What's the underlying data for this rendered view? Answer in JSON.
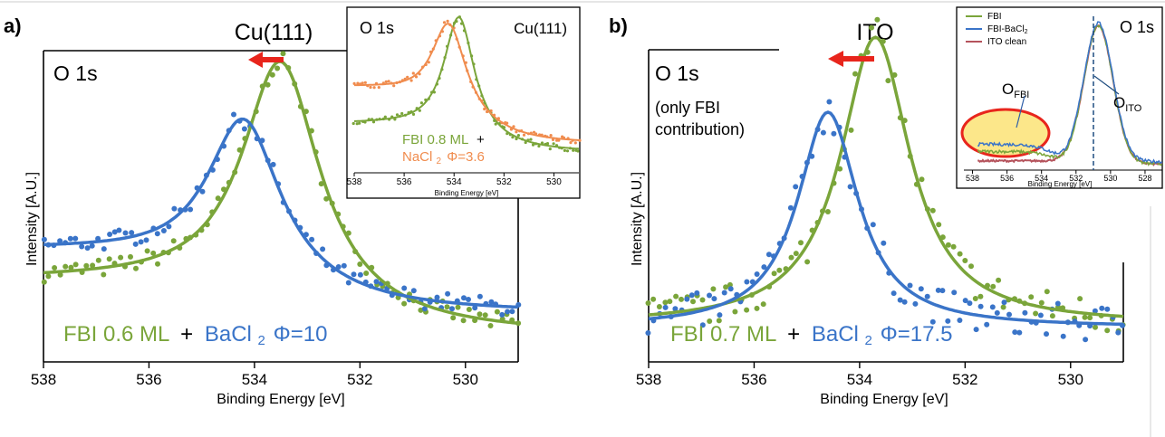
{
  "colors": {
    "green": "#7aa53a",
    "blue": "#3a74c8",
    "orange": "#f08c4e",
    "red": "#e8251c",
    "maroon": "#b5535c",
    "highlight": "#fce78a"
  },
  "panel_a": {
    "label": "a)",
    "substrate": "Cu(111)",
    "peak": "O 1s",
    "legend": {
      "fbi": "FBI 0.6 ML",
      "plus": "+",
      "bacl": "BaCl",
      "bacl_sub": "2",
      "phi": "Φ=10"
    },
    "xlabel": "Binding Energy [eV]",
    "ylabel": "Intensity [A.U.]",
    "ticks": [
      "538",
      "536",
      "534",
      "532",
      "530"
    ],
    "inset": {
      "peak": "O 1s",
      "substrate": "Cu(111)",
      "legend_fbi": "FBI 0.8 ML",
      "legend_plus": "+",
      "legend_nacl": "NaCl",
      "legend_nacl_sub": "2",
      "legend_phi": "Φ=3.6",
      "ticks": [
        "538",
        "536",
        "534",
        "532",
        "530"
      ],
      "xlabel": "Binding Energy [eV]"
    }
  },
  "panel_b": {
    "label": "b)",
    "substrate": "ITO",
    "peak": "O 1s",
    "note_1": "(only FBI",
    "note_2": "contribution)",
    "legend": {
      "fbi": "FBI 0.7 ML",
      "plus": "+",
      "bacl": "BaCl",
      "bacl_sub": "2",
      "phi": "Φ=17.5"
    },
    "xlabel": "Binding Energy [eV]",
    "ylabel": "Intensity [A.U.]",
    "ticks": [
      "538",
      "536",
      "534",
      "532",
      "530"
    ],
    "inset": {
      "peak": "O 1s",
      "legend": [
        "FBI",
        "FBI-BaCl",
        "ITO clean"
      ],
      "legend_sub": "2",
      "ann_fbi": "O",
      "ann_fbi_sub": "FBI",
      "ann_ito": "O",
      "ann_ito_sub": "ITO",
      "ticks": [
        "538",
        "536",
        "534",
        "532",
        "530",
        "528"
      ],
      "xlabel": "Binding Energy [eV]"
    }
  },
  "chart_data": [
    {
      "type": "scatter",
      "title": "Cu(111)",
      "xlabel": "Binding Energy [eV]",
      "ylabel": "Intensity [A.U.]",
      "xlim": [
        538,
        529
      ],
      "x_reversed": true,
      "series": [
        {
          "name": "FBI 0.6 ML",
          "fit_center": 533.5,
          "fit_width": 0.9,
          "fit_height": 0.79,
          "baseline_low": 0.26,
          "baseline_high": 0.09
        },
        {
          "name": "BaCl2 Φ=10",
          "fit_center": 534.2,
          "fit_width": 0.85,
          "fit_height": 0.52,
          "baseline_low": 0.36,
          "baseline_high": 0.16
        }
      ],
      "annotations": [
        "O 1s",
        "peak shift arrow toward higher binding energy"
      ]
    },
    {
      "type": "line",
      "title": "Cu(111) inset",
      "xlim": [
        538,
        529
      ],
      "series": [
        {
          "name": "FBI 0.8 ML",
          "fit_center": 533.8
        },
        {
          "name": "NaCl2 Φ=3.6",
          "fit_center": 534.2
        }
      ]
    },
    {
      "type": "scatter",
      "title": "ITO",
      "xlabel": "Binding Energy [eV]",
      "ylabel": "Intensity [A.U.]",
      "xlim": [
        538,
        529
      ],
      "x_reversed": true,
      "series": [
        {
          "name": "FBI 0.7 ML",
          "fit_center": 533.7,
          "fit_width": 0.8,
          "fit_height": 0.92,
          "baseline": 0.12
        },
        {
          "name": "BaCl2 Φ=17.5",
          "fit_center": 534.6,
          "fit_width": 0.7,
          "fit_height": 0.69,
          "baseline": 0.11
        }
      ],
      "annotations": [
        "O 1s",
        "(only FBI contribution)"
      ]
    },
    {
      "type": "line",
      "title": "ITO inset",
      "xlim": [
        538,
        527
      ],
      "series": [
        {
          "name": "FBI",
          "fit_center": 530.7
        },
        {
          "name": "FBI-BaCl2",
          "fit_center": 530.7
        },
        {
          "name": "ITO clean",
          "fit_center": 530.7
        }
      ],
      "annotations": [
        "O_FBI",
        "O_ITO"
      ]
    }
  ]
}
